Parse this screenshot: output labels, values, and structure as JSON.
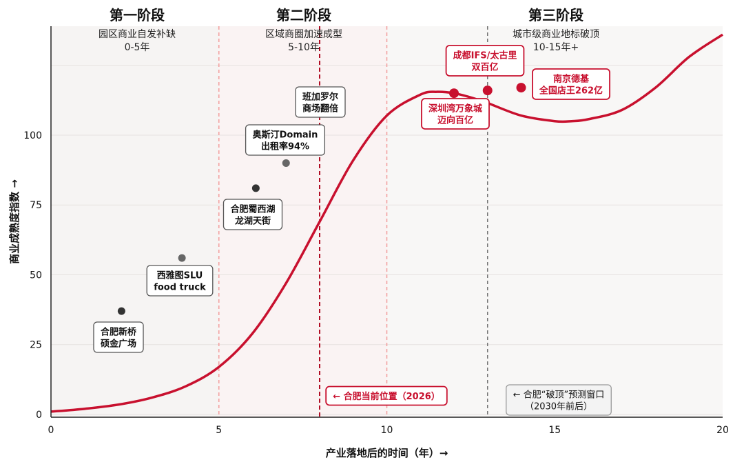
{
  "chart_data": {
    "type": "line",
    "xlabel": "产业落地后的时间（年）→",
    "ylabel": "商业成熟度指数 →",
    "xlim": [
      0,
      20
    ],
    "ylim": [
      -1,
      139
    ],
    "xticks": [
      "0",
      "5",
      "10",
      "15",
      "20"
    ],
    "yticks": [
      "0",
      "25",
      "50",
      "75",
      "100"
    ],
    "grid": "horizontal",
    "colors": {
      "curve": "#c8102e",
      "point_dark": "#333333",
      "point_gray": "#666666",
      "point_red": "#c8102e",
      "band": "#f6f4f3"
    },
    "phases": [
      {
        "title": "第一阶段",
        "subtitle": "园区商业自发补缺",
        "range": "0-5年"
      },
      {
        "title": "第二阶段",
        "subtitle": "区域商圈加速成型",
        "range": "5-10年"
      },
      {
        "title": "第三阶段",
        "subtitle": "城市级商业地标破顶",
        "range": "10-15年+"
      }
    ],
    "curve": {
      "x": [
        0,
        1,
        2,
        3,
        4,
        5,
        6,
        7,
        8,
        9,
        10,
        11,
        11.5,
        12,
        12.5,
        13,
        14,
        15,
        15.5,
        16,
        17,
        18,
        19,
        20
      ],
      "y": [
        1,
        2,
        3.5,
        6,
        10,
        17,
        29,
        47,
        69,
        91,
        107,
        114.5,
        115.5,
        115,
        113.5,
        111.5,
        107,
        105,
        105,
        105.7,
        109,
        117,
        128,
        136
      ]
    },
    "points": [
      {
        "x": 2.1,
        "y": 37,
        "style": "dark",
        "label": [
          "合肥新桥",
          "硕金广场"
        ]
      },
      {
        "x": 3.9,
        "y": 56,
        "style": "gray",
        "label": [
          "西雅图SLU",
          "food truck"
        ]
      },
      {
        "x": 6.1,
        "y": 81,
        "style": "dark",
        "label": [
          "合肥蜀西湖",
          "龙湖天街"
        ]
      },
      {
        "x": 7.0,
        "y": 90,
        "style": "gray",
        "label": [
          "奥斯汀Domain",
          "出租率94%"
        ]
      },
      {
        "x": 12.0,
        "y": 115,
        "style": "red",
        "label": [
          "深圳湾万象城",
          "迈向百亿"
        ]
      },
      {
        "x": 13.0,
        "y": 116,
        "style": "red",
        "label": [
          "成都IFS/太古里",
          "双百亿"
        ]
      },
      {
        "x": 14.0,
        "y": 117,
        "style": "red",
        "label": [
          "南京德基",
          "全国店王262亿"
        ]
      }
    ],
    "annotations": {
      "bangalore": [
        "班加罗尔",
        "商场翻倍"
      ],
      "hefei_now": "← 合肥当前位置（2026）",
      "breakout": [
        "← 合肥“破顶”预测窗口",
        "（2030年前后）"
      ]
    },
    "vlines": [
      {
        "x": 5,
        "style": "phase"
      },
      {
        "x": 10,
        "style": "phase"
      },
      {
        "x": 8,
        "style": "current"
      },
      {
        "x": 13,
        "style": "forecast"
      }
    ]
  }
}
